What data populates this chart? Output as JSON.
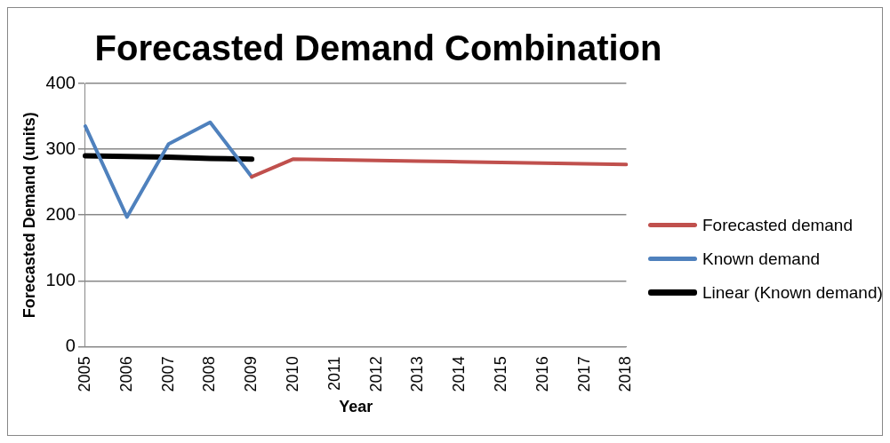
{
  "chart_data": {
    "type": "line",
    "title": "Forecasted Demand Combination",
    "xlabel": "Year",
    "ylabel": "Forecasted Demand (units)",
    "categories": [
      "2005",
      "2006",
      "2007",
      "2008",
      "2009",
      "2010",
      "2011",
      "2012",
      "2013",
      "2014",
      "2015",
      "2016",
      "2017",
      "2018"
    ],
    "series": [
      {
        "name": "Forecasted demand",
        "color": "#c0504d",
        "values": [
          null,
          null,
          null,
          null,
          258,
          285,
          284,
          283,
          282,
          281,
          280,
          279,
          278,
          277
        ]
      },
      {
        "name": "Known demand",
        "color": "#4f81bd",
        "values": [
          335,
          197,
          308,
          341,
          258,
          null,
          null,
          null,
          null,
          null,
          null,
          null,
          null,
          null
        ]
      },
      {
        "name": "Linear (Known demand)",
        "color": "#000000",
        "values": [
          290,
          289,
          288,
          286,
          285,
          null,
          null,
          null,
          null,
          null,
          null,
          null,
          null,
          null
        ]
      }
    ],
    "ylim": [
      0,
      400
    ],
    "yticks": [
      0,
      100,
      200,
      300,
      400
    ],
    "grid": "y",
    "legend": "right",
    "marker": "none",
    "line_style": "solid"
  }
}
